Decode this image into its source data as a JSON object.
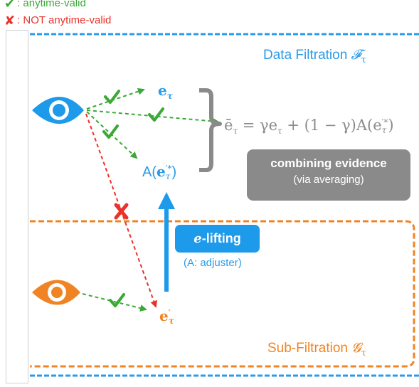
{
  "legend": {
    "valid_symbol": "✔",
    "valid_text": ": anytime-valid",
    "invalid_symbol": "✘",
    "invalid_text": ": NOT anytime-valid"
  },
  "data_filtration": {
    "label": "Data Filtration ",
    "symbol": "𝓕",
    "subscript": "τ",
    "color": "#2b9be8"
  },
  "sub_filtration": {
    "label": "Sub-Filtration ",
    "symbol": "𝓖",
    "subscript": "τ",
    "color": "#f08424"
  },
  "nodes": {
    "e_tau": {
      "base": "e",
      "sub": "τ"
    },
    "adjusted": {
      "prefix": "A(",
      "base": "e",
      "sup": "′*",
      "sub": "τ",
      "suffix": ")"
    },
    "e_prime": {
      "base": "e",
      "sup": "′",
      "sub": "τ"
    }
  },
  "equation": {
    "lhs_base": "ē",
    "lhs_sub": "τ",
    "rhs_1": " = γe",
    "rhs_1_sub": "τ",
    "rhs_2": " + (1 − γ)A(e",
    "rhs_2_sup": "′*",
    "rhs_2_sub": "τ",
    "rhs_3": ")"
  },
  "combine_box": {
    "title": "combining evidence",
    "subtitle": "(via averaging)"
  },
  "lift_box": {
    "prefix": "e",
    "label": "-lifting"
  },
  "adjuster_note": "(A: adjuster)",
  "colors": {
    "blue": "#2b9be8",
    "orange": "#f08424",
    "green": "#3aa935",
    "red": "#e8322a",
    "gray": "#8a8a8a"
  }
}
